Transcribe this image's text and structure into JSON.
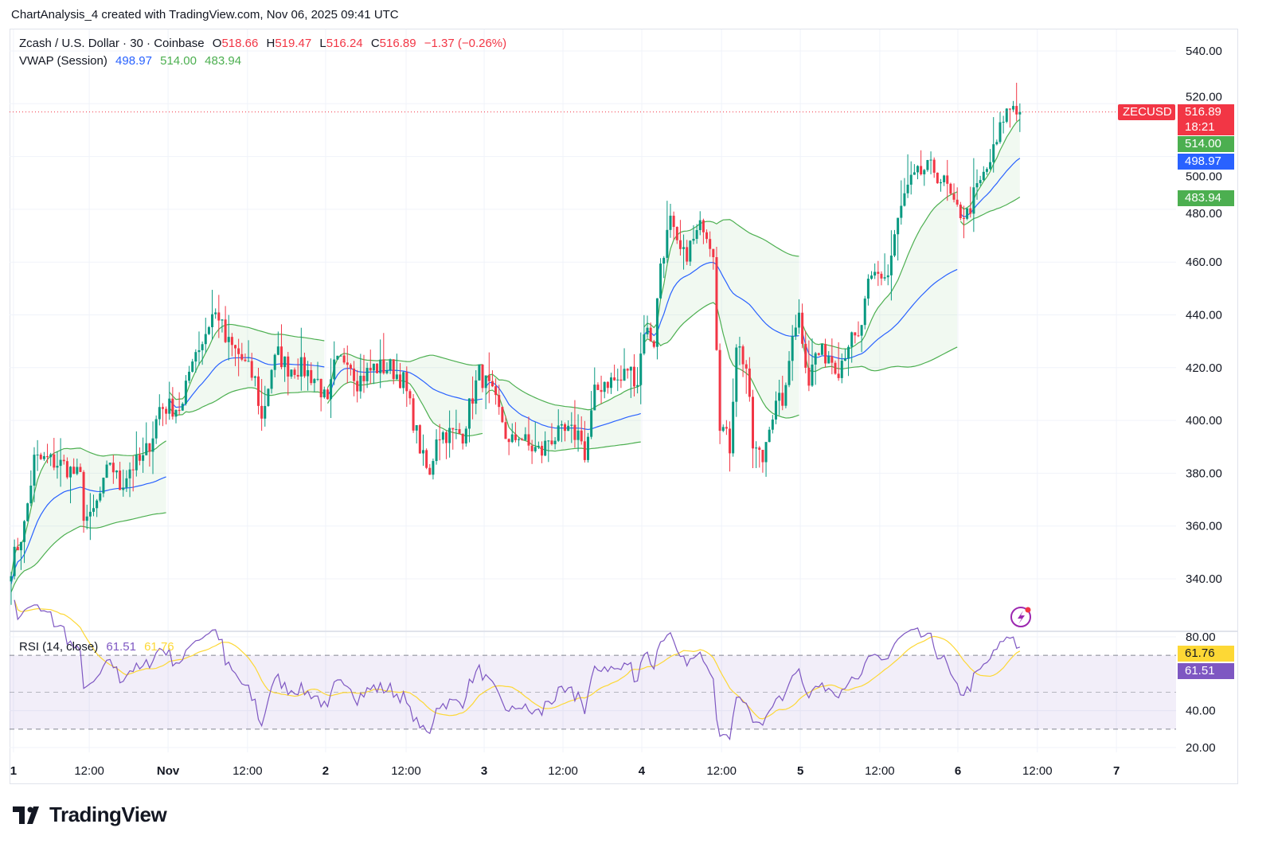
{
  "caption": "ChartAnalysis_4 created with TradingView.com, Nov 06, 2025 09:41 UTC",
  "legend": {
    "symbol": "Zcash / U.S. Dollar · 30 · Coinbase",
    "o_label": "O",
    "o": "518.66",
    "h_label": "H",
    "h": "519.47",
    "l_label": "L",
    "l": "516.24",
    "c_label": "C",
    "c": "516.89",
    "change": "−1.37 (−0.26%)",
    "vwap_label": "VWAP (Session)",
    "vwap": "498.97",
    "upper": "514.00",
    "lower": "483.94",
    "rsi_label": "RSI (14, close)",
    "rsi": "61.51",
    "rsi_ma": "61.76"
  },
  "price_tags": {
    "symbol": "ZECUSD",
    "last": "516.89",
    "countdown": "18:21",
    "upper": "514.00",
    "vwap": "498.97",
    "lower": "483.94",
    "rsi_ma": "61.76",
    "rsi": "61.51"
  },
  "colors": {
    "up": "#089981",
    "down": "#f23645",
    "vwap": "#2962ff",
    "band": "#4caf50",
    "rsi": "#7e57c2",
    "rsi_ma": "#fdd835",
    "grid": "#f0f3fa"
  },
  "brand": "TradingView",
  "chart_data": {
    "type": "candlestick",
    "title": "Zcash / U.S. Dollar · 30 · Coinbase",
    "ylim": [
      330,
      545
    ],
    "yticks": [
      "340.00",
      "360.00",
      "380.00",
      "400.00",
      "420.00",
      "440.00",
      "460.00",
      "480.00",
      "500.00",
      "520.00",
      "540.00"
    ],
    "rsi_yticks": [
      "20.00",
      "40.00",
      "80.00"
    ],
    "rsi_levels": [
      70,
      50,
      30
    ],
    "last_price": 516.89,
    "session_length_bars": 48,
    "session_starts": [
      0,
      48,
      96,
      144,
      192,
      240,
      288
    ],
    "xticks": [
      {
        "label": "1",
        "bar": 0.7
      },
      {
        "label": "12:00",
        "bar": 23.7
      },
      {
        "label": "Nov",
        "bar": 47.6
      },
      {
        "label": "12:00",
        "bar": 71.7
      },
      {
        "label": "2",
        "bar": 95.4
      },
      {
        "label": "12:00",
        "bar": 119.8
      },
      {
        "label": "3",
        "bar": 143.5
      },
      {
        "label": "12:00",
        "bar": 167.4
      },
      {
        "label": "4",
        "bar": 191.3
      },
      {
        "label": "12:00",
        "bar": 215.5
      },
      {
        "label": "5",
        "bar": 239.4
      },
      {
        "label": "12:00",
        "bar": 263.5
      },
      {
        "label": "6",
        "bar": 287.2
      },
      {
        "label": "12:00",
        "bar": 311.3
      },
      {
        "label": "7",
        "bar": 335.3
      }
    ],
    "close_path": [
      [
        0,
        345
      ],
      [
        4,
        360
      ],
      [
        7,
        385
      ],
      [
        11,
        385
      ],
      [
        16,
        383
      ],
      [
        21,
        378
      ],
      [
        22,
        365
      ],
      [
        24,
        362
      ],
      [
        28,
        375
      ],
      [
        30,
        385
      ],
      [
        33,
        375
      ],
      [
        36,
        382
      ],
      [
        40,
        385
      ],
      [
        43,
        395
      ],
      [
        45,
        405
      ],
      [
        49,
        405
      ],
      [
        52,
        405
      ],
      [
        55,
        425
      ],
      [
        58,
        430
      ],
      [
        61,
        440
      ],
      [
        63,
        440
      ],
      [
        65,
        430
      ],
      [
        69,
        425
      ],
      [
        74,
        415
      ],
      [
        76,
        400
      ],
      [
        79,
        420
      ],
      [
        81,
        425
      ],
      [
        84,
        420
      ],
      [
        88,
        420
      ],
      [
        93,
        415
      ],
      [
        96,
        405
      ],
      [
        98,
        420
      ],
      [
        102,
        425
      ],
      [
        105,
        415
      ],
      [
        110,
        420
      ],
      [
        115,
        420
      ],
      [
        119,
        415
      ],
      [
        122,
        400
      ],
      [
        125,
        385
      ],
      [
        127,
        378
      ],
      [
        129,
        395
      ],
      [
        133,
        395
      ],
      [
        137,
        395
      ],
      [
        139,
        405
      ],
      [
        142,
        418
      ],
      [
        145,
        412
      ],
      [
        149,
        400
      ],
      [
        151,
        390
      ],
      [
        154,
        395
      ],
      [
        157,
        390
      ],
      [
        161,
        388
      ],
      [
        163,
        393
      ],
      [
        168,
        395
      ],
      [
        173,
        395
      ],
      [
        174,
        385
      ],
      [
        177,
        410
      ],
      [
        180,
        415
      ],
      [
        185,
        415
      ],
      [
        187,
        420
      ],
      [
        190,
        415
      ],
      [
        192,
        435
      ],
      [
        195,
        430
      ],
      [
        197,
        460
      ],
      [
        200,
        475
      ],
      [
        202,
        465
      ],
      [
        204,
        462
      ],
      [
        207,
        468
      ],
      [
        210,
        475
      ],
      [
        213,
        465
      ],
      [
        214,
        430
      ],
      [
        215,
        400
      ],
      [
        218,
        390
      ],
      [
        220,
        430
      ],
      [
        223,
        420
      ],
      [
        225,
        390
      ],
      [
        228,
        385
      ],
      [
        230,
        400
      ],
      [
        232,
        405
      ],
      [
        235,
        410
      ],
      [
        237,
        435
      ],
      [
        239,
        440
      ],
      [
        242,
        415
      ],
      [
        244,
        425
      ],
      [
        248,
        425
      ],
      [
        251,
        420
      ],
      [
        254,
        430
      ],
      [
        257,
        430
      ],
      [
        260,
        450
      ],
      [
        262,
        455
      ],
      [
        266,
        455
      ],
      [
        268,
        470
      ],
      [
        271,
        485
      ],
      [
        273,
        490
      ],
      [
        277,
        495
      ],
      [
        280,
        495
      ],
      [
        284,
        488
      ],
      [
        286,
        480
      ],
      [
        290,
        478
      ],
      [
        292,
        485
      ],
      [
        296,
        495
      ],
      [
        299,
        505
      ],
      [
        301,
        515
      ],
      [
        304,
        520
      ],
      [
        306,
        516.89
      ]
    ]
  }
}
